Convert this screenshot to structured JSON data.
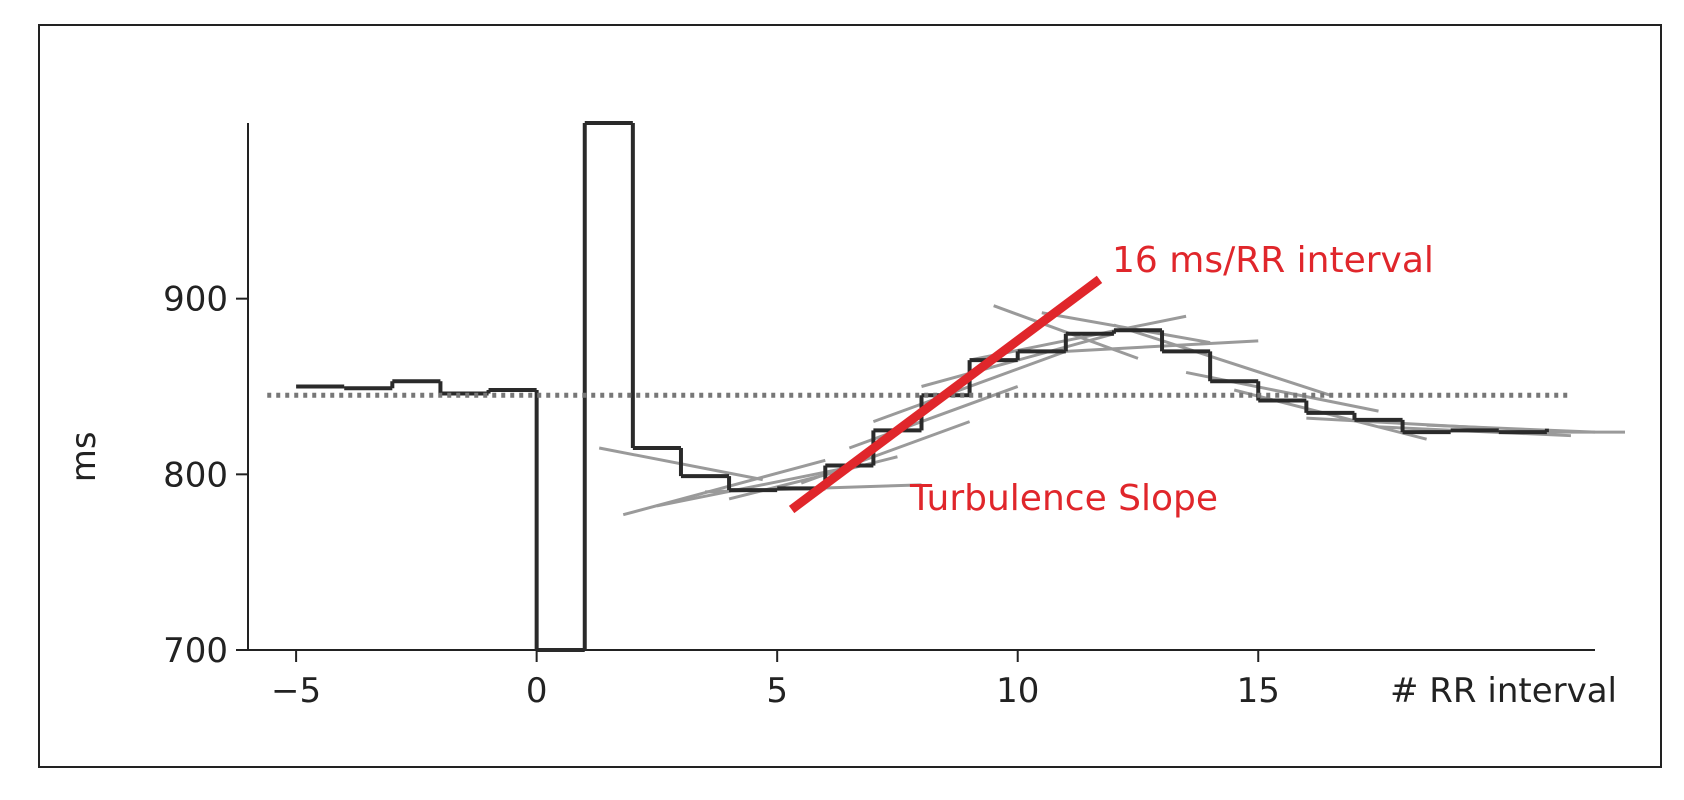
{
  "chart_data": {
    "type": "line",
    "xlabel": "# RR interval",
    "ylabel": "ms",
    "x_ticks": [
      -5,
      0,
      5,
      10,
      15
    ],
    "y_ticks": [
      700,
      800,
      900
    ],
    "xlim": [
      -6,
      22
    ],
    "ylim": [
      700,
      1000
    ],
    "reference_line": {
      "y": 845,
      "style": "dotted"
    },
    "series": [
      {
        "style": "step",
        "x": [
          -5,
          -4,
          -3,
          -2,
          -1,
          0,
          1,
          2,
          3,
          4,
          5,
          6,
          7,
          8,
          9,
          10,
          11,
          12,
          13,
          14,
          15,
          16,
          17,
          18,
          19,
          20,
          21
        ],
        "y": [
          850,
          849,
          853,
          846,
          848,
          700,
          1000,
          815,
          799,
          791,
          792,
          805,
          825,
          845,
          865,
          870,
          880,
          882,
          870,
          853,
          842,
          835,
          831,
          824,
          825,
          824,
          826
        ]
      }
    ],
    "annotations": [
      {
        "text": "16 ms/RR interval",
        "color": "#e0262b"
      },
      {
        "text": "Turbulence Slope",
        "color": "#e0262b"
      }
    ],
    "slope_line": {
      "x": [
        5.3,
        11.7
      ],
      "y": [
        780,
        911
      ],
      "color": "#e0262b"
    },
    "tangent_lines": [
      {
        "x": [
          1.3,
          4.7
        ],
        "y": [
          815,
          797
        ]
      },
      {
        "x": [
          1.8,
          6.0
        ],
        "y": [
          777,
          808
        ]
      },
      {
        "x": [
          2.5,
          6.5
        ],
        "y": [
          782,
          804
        ]
      },
      {
        "x": [
          3.5,
          8.0
        ],
        "y": [
          790,
          794
        ]
      },
      {
        "x": [
          4.0,
          7.5
        ],
        "y": [
          786,
          810
        ]
      },
      {
        "x": [
          5.5,
          9.0
        ],
        "y": [
          795,
          830
        ]
      },
      {
        "x": [
          6.5,
          10.0
        ],
        "y": [
          815,
          850
        ]
      },
      {
        "x": [
          7.0,
          11.0
        ],
        "y": [
          830,
          870
        ]
      },
      {
        "x": [
          8.0,
          12.0
        ],
        "y": [
          850,
          880
        ]
      },
      {
        "x": [
          9.0,
          13.5
        ],
        "y": [
          865,
          890
        ]
      },
      {
        "x": [
          9.5,
          12.5
        ],
        "y": [
          896,
          866
        ]
      },
      {
        "x": [
          10.5,
          14.0
        ],
        "y": [
          892,
          875
        ]
      },
      {
        "x": [
          11.0,
          15.0
        ],
        "y": [
          870,
          876
        ]
      },
      {
        "x": [
          12.0,
          16.5
        ],
        "y": [
          885,
          845
        ]
      },
      {
        "x": [
          13.5,
          17.5
        ],
        "y": [
          858,
          836
        ]
      },
      {
        "x": [
          14.5,
          18.5
        ],
        "y": [
          848,
          820
        ]
      },
      {
        "x": [
          16.0,
          20.0
        ],
        "y": [
          832,
          826
        ]
      },
      {
        "x": [
          17.5,
          21.5
        ],
        "y": [
          827,
          822
        ]
      },
      {
        "x": [
          18.5,
          22.0
        ],
        "y": [
          828,
          824
        ]
      }
    ],
    "grid": false
  }
}
